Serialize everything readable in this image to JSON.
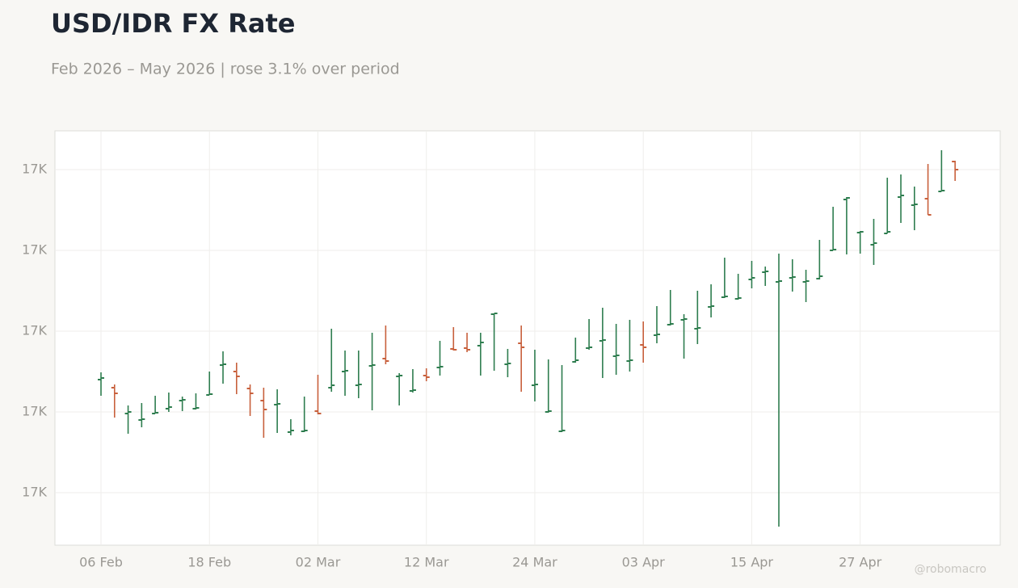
{
  "chart_data": {
    "type": "ohlc",
    "title": "USD/IDR FX Rate",
    "subtitle": "Feb 2026 – May 2026 | rose 3.1% over period",
    "watermark": "@robomacro",
    "categories": [
      "06 Feb",
      "09 Feb",
      "10 Feb",
      "11 Feb",
      "12 Feb",
      "13 Feb",
      "16 Feb",
      "17 Feb",
      "18 Feb",
      "19 Feb",
      "20 Feb",
      "23 Feb",
      "24 Feb",
      "25 Feb",
      "26 Feb",
      "27 Feb",
      "02 Mar",
      "03 Mar",
      "04 Mar",
      "05 Mar",
      "06 Mar",
      "09 Mar",
      "10 Mar",
      "11 Mar",
      "12 Mar",
      "13 Mar",
      "16 Mar",
      "17 Mar",
      "18 Mar",
      "19 Mar",
      "20 Mar",
      "23 Mar",
      "24 Mar",
      "25 Mar",
      "26 Mar",
      "27 Mar",
      "30 Mar",
      "31 Mar",
      "01 Apr",
      "02 Apr",
      "03 Apr",
      "06 Apr",
      "07 Apr",
      "08 Apr",
      "09 Apr",
      "10 Apr",
      "13 Apr",
      "14 Apr",
      "15 Apr",
      "16 Apr",
      "17 Apr",
      "20 Apr",
      "21 Apr",
      "22 Apr",
      "23 Apr",
      "24 Apr",
      "27 Apr",
      "28 Apr",
      "29 Apr",
      "30 Apr",
      "01 May",
      "04 May",
      "05 May",
      "06 May"
    ],
    "open": [
      16880,
      16860,
      16796,
      16780,
      16796,
      16808,
      16828,
      16808,
      16842,
      16916,
      16900,
      16858,
      16828,
      16818,
      16750,
      16752,
      16802,
      16860,
      16900,
      16866,
      16914,
      16932,
      16888,
      16852,
      16890,
      16910,
      16956,
      16958,
      16964,
      17042,
      16918,
      16970,
      16866,
      16800,
      16752,
      16924,
      16958,
      16976,
      16938,
      16926,
      16966,
      16990,
      17016,
      17028,
      17006,
      17060,
      17084,
      17080,
      17128,
      17146,
      17122,
      17132,
      17122,
      17130,
      17200,
      17326,
      17244,
      17214,
      17242,
      17332,
      17312,
      17328,
      17346,
      17420
    ],
    "high": [
      16898,
      16868,
      16816,
      16822,
      16840,
      16848,
      16838,
      16846,
      16900,
      16950,
      16922,
      16868,
      16860,
      16856,
      16782,
      16838,
      16892,
      17006,
      16952,
      16952,
      16996,
      17014,
      16896,
      16906,
      16908,
      16976,
      17010,
      16996,
      16996,
      17044,
      16956,
      17014,
      16954,
      16930,
      16916,
      16984,
      17030,
      17058,
      17018,
      17028,
      17024,
      17062,
      17102,
      17042,
      17100,
      17116,
      17182,
      17142,
      17174,
      17160,
      17192,
      17178,
      17152,
      17226,
      17308,
      17332,
      17248,
      17278,
      17380,
      17388,
      17358,
      17414,
      17448,
      17422
    ],
    "low": [
      16840,
      16786,
      16746,
      16762,
      16796,
      16800,
      16802,
      16806,
      16842,
      16870,
      16844,
      16790,
      16736,
      16748,
      16742,
      16750,
      16794,
      16850,
      16840,
      16834,
      16804,
      16918,
      16816,
      16848,
      16876,
      16890,
      16952,
      16948,
      16890,
      16902,
      16886,
      16850,
      16826,
      16798,
      16750,
      16922,
      16954,
      16884,
      16892,
      16900,
      16922,
      16970,
      17014,
      16932,
      16968,
      17034,
      17082,
      17078,
      17106,
      17112,
      16516,
      17098,
      17072,
      17128,
      17200,
      17190,
      17192,
      17164,
      17242,
      17268,
      17250,
      17288,
      17346,
      17372
    ],
    "close": [
      16884,
      16846,
      16800,
      16782,
      16798,
      16812,
      16830,
      16810,
      16844,
      16918,
      16888,
      16846,
      16806,
      16820,
      16754,
      16754,
      16796,
      16866,
      16902,
      16868,
      16916,
      16926,
      16890,
      16854,
      16886,
      16912,
      16954,
      16954,
      16972,
      17044,
      16920,
      16960,
      16868,
      16802,
      16754,
      16928,
      16960,
      16978,
      16940,
      16928,
      16960,
      16992,
      17018,
      17030,
      17008,
      17062,
      17086,
      17082,
      17132,
      17148,
      17124,
      17134,
      17124,
      17136,
      17202,
      17330,
      17246,
      17218,
      17246,
      17336,
      17314,
      17288,
      17348,
      17400
    ],
    "up_color": "#2e7d4f",
    "down_color": "#c8603c",
    "ylim": [
      16470,
      17496
    ],
    "yticks": [
      {
        "value": 16600,
        "label": "17K"
      },
      {
        "value": 16800,
        "label": "17K"
      },
      {
        "value": 17000,
        "label": "17K"
      },
      {
        "value": 17200,
        "label": "17K"
      },
      {
        "value": 17400,
        "label": "17K"
      }
    ],
    "xticks": [
      {
        "value": 0,
        "label": "06 Feb"
      },
      {
        "value": 8,
        "label": "18 Feb"
      },
      {
        "value": 16,
        "label": "02 Mar"
      },
      {
        "value": 24,
        "label": "12 Mar"
      },
      {
        "value": 32,
        "label": "24 Mar"
      },
      {
        "value": 40,
        "label": "03 Apr"
      },
      {
        "value": 48,
        "label": "15 Apr"
      },
      {
        "value": 56,
        "label": "27 Apr"
      }
    ],
    "grid": true
  }
}
